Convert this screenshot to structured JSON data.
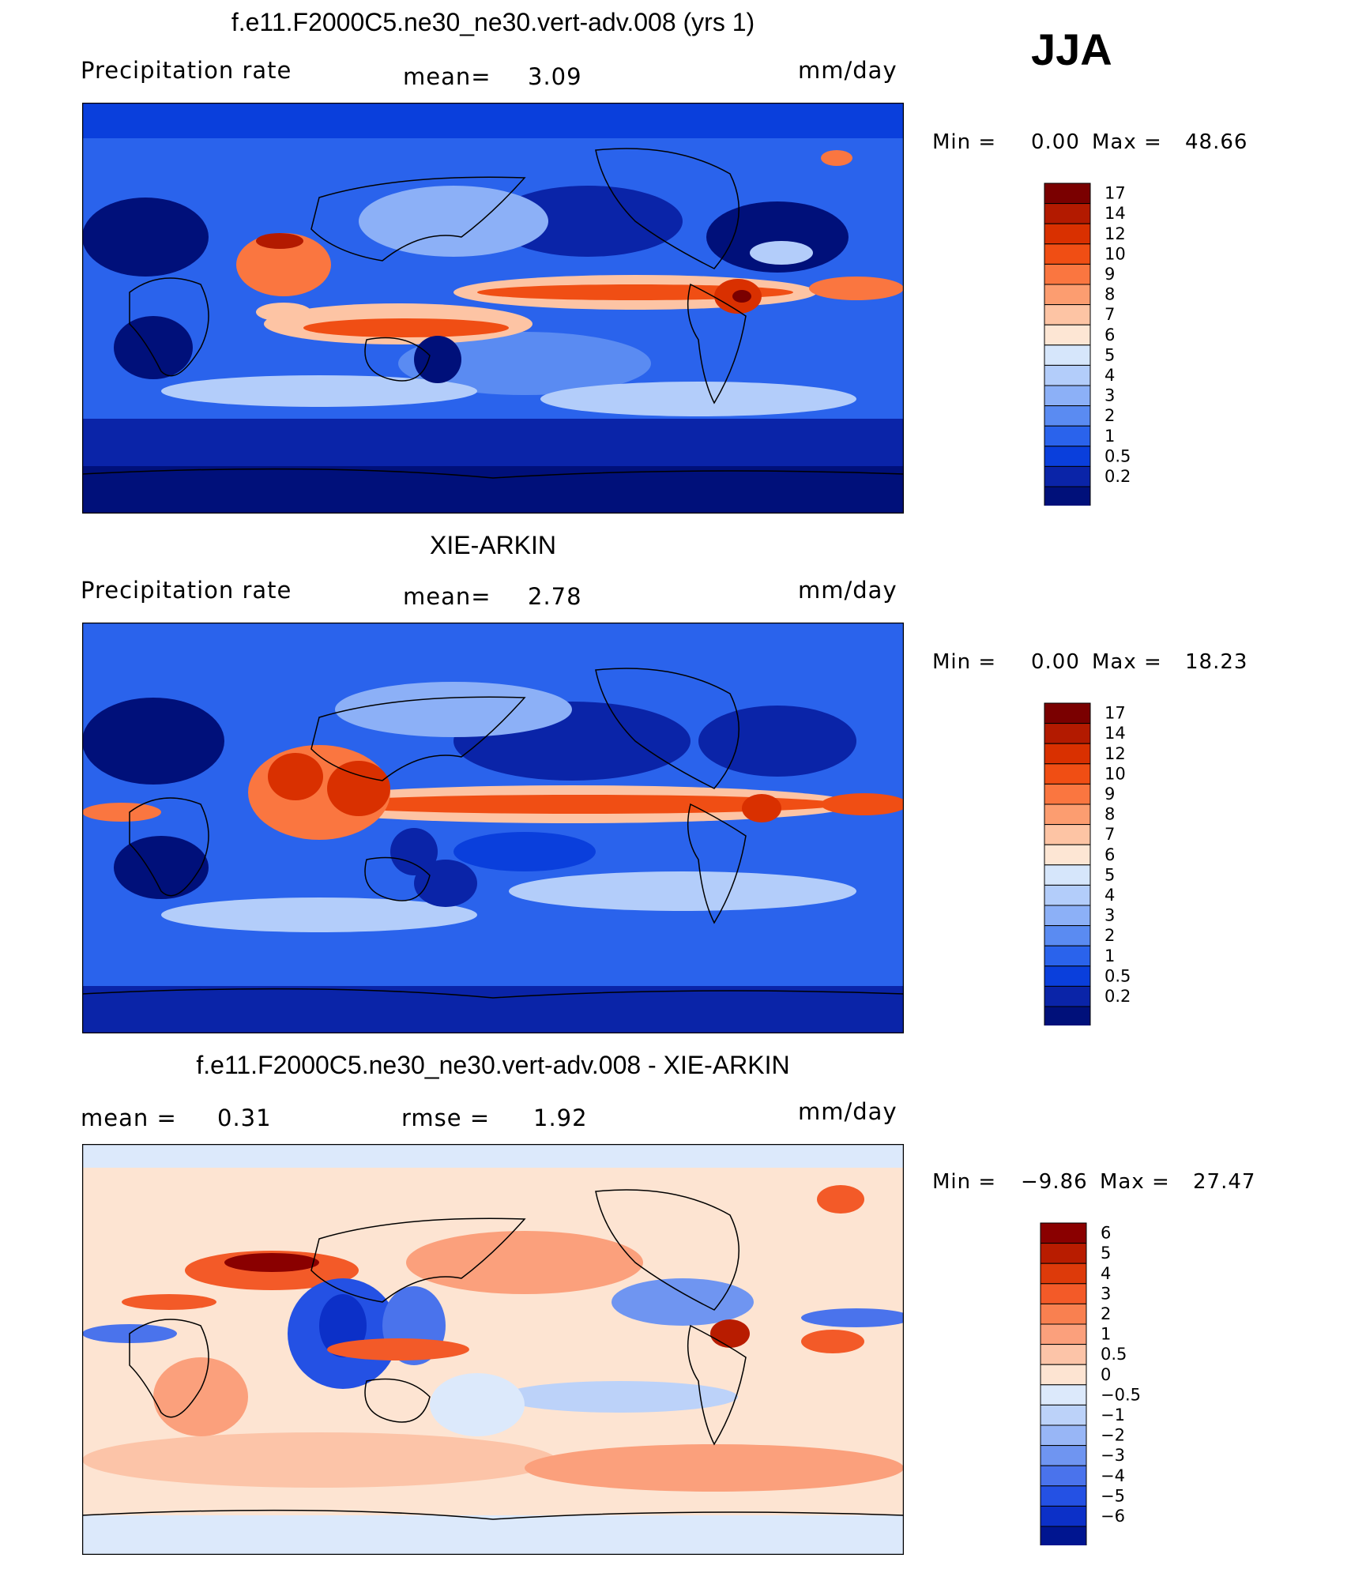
{
  "season": "JJA",
  "units": "mm/day",
  "panels": [
    {
      "title": "f.e11.F2000C5.ne30_ne30.vert-adv.008 (yrs 1)",
      "left_label": "Precipitation rate",
      "mean_label": "mean=",
      "mean_value": "3.09",
      "min_label": "Min =",
      "min_value": "0.00",
      "max_label": "Max =",
      "max_value": "48.66",
      "colorbar": [
        "17",
        "14",
        "12",
        "10",
        "9",
        "8",
        "7",
        "6",
        "5",
        "4",
        "3",
        "2",
        "1",
        "0.5",
        "0.2"
      ],
      "colors": [
        "#7a0000",
        "#b31a00",
        "#d93000",
        "#f04e14",
        "#fa7640",
        "#fc9d70",
        "#fdc4a4",
        "#fde6d4",
        "#d6e6fb",
        "#b3cdfa",
        "#8cb0f7",
        "#5a8bf2",
        "#2a63ec",
        "#0a3fdc",
        "#0a24a8",
        "#00107a"
      ]
    },
    {
      "title": "XIE-ARKIN",
      "left_label": "Precipitation rate",
      "mean_label": "mean=",
      "mean_value": "2.78",
      "min_label": "Min =",
      "min_value": "0.00",
      "max_label": "Max =",
      "max_value": "18.23",
      "colorbar": [
        "17",
        "14",
        "12",
        "10",
        "9",
        "8",
        "7",
        "6",
        "5",
        "4",
        "3",
        "2",
        "1",
        "0.5",
        "0.2"
      ],
      "colors": [
        "#7a0000",
        "#b31a00",
        "#d93000",
        "#f04e14",
        "#fa7640",
        "#fc9d70",
        "#fdc4a4",
        "#fde6d4",
        "#d6e6fb",
        "#b3cdfa",
        "#8cb0f7",
        "#5a8bf2",
        "#2a63ec",
        "#0a3fdc",
        "#0a24a8",
        "#00107a"
      ]
    },
    {
      "title": "f.e11.F2000C5.ne30_ne30.vert-adv.008 - XIE-ARKIN",
      "left_label": "mean =",
      "left_value": "0.31",
      "mean_label": "rmse =",
      "mean_value": "1.92",
      "min_label": "Min =",
      "min_value": "−9.86",
      "max_label": "Max =",
      "max_value": "27.47",
      "colorbar": [
        "6",
        "5",
        "4",
        "3",
        "2",
        "1",
        "0.5",
        "0",
        "−0.5",
        "−1",
        "−2",
        "−3",
        "−4",
        "−5",
        "−6"
      ],
      "colors": [
        "#8a0000",
        "#b81c00",
        "#dd3a0a",
        "#f35a28",
        "#f98050",
        "#fba07c",
        "#fcc4a8",
        "#fde4d2",
        "#dce9fb",
        "#bcd2f9",
        "#98b6f6",
        "#6f95f1",
        "#4a73ec",
        "#2451e4",
        "#0c30c8",
        "#001590"
      ]
    }
  ]
}
